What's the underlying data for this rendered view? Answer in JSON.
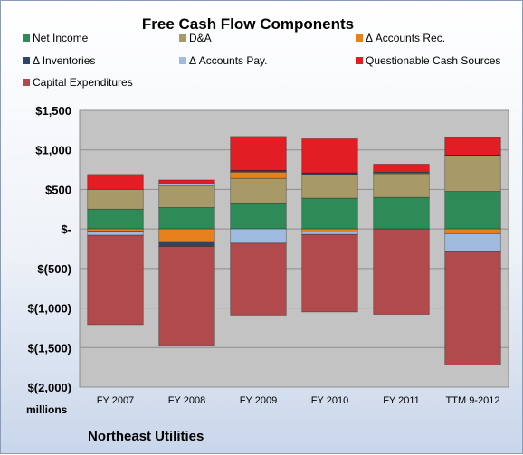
{
  "chart_data": {
    "type": "bar",
    "stacked": true,
    "title": "Free Cash Flow Components",
    "ylabel": "millions",
    "footer": "Northeast Utilities",
    "categories": [
      "FY 2007",
      "FY 2008",
      "FY 2009",
      "FY 2010",
      "FY 2011",
      "TTM 9-2012"
    ],
    "ylim": [
      -2000,
      1500
    ],
    "yticks": [
      -2000,
      -1500,
      -1000,
      -500,
      0,
      500,
      1000,
      1500
    ],
    "ytick_labels": [
      "$(2,000)",
      "$(1,500)",
      "$(1,000)",
      "$(500)",
      "$-",
      "$500",
      "$1,000",
      "$1,500"
    ],
    "grid": true,
    "legend_position": "top",
    "series": [
      {
        "name": "Net Income",
        "color": "#2e8b57",
        "values": [
          250,
          270,
          330,
          390,
          400,
          475
        ]
      },
      {
        "name": "D&A",
        "color": "#a89a68",
        "values": [
          250,
          280,
          310,
          300,
          300,
          450
        ]
      },
      {
        "name": "Δ Accounts Rec.",
        "color": "#e8801c",
        "values": [
          -30,
          -160,
          80,
          -40,
          10,
          -60
        ]
      },
      {
        "name": "Δ Inventories",
        "color": "#2b4668",
        "values": [
          -10,
          -60,
          20,
          20,
          10,
          10
        ]
      },
      {
        "name": "Δ Accounts Pay.",
        "color": "#9fbbdf",
        "values": [
          -40,
          30,
          -180,
          -30,
          10,
          -230
        ]
      },
      {
        "name": "Questionable Cash Sources",
        "color": "#e21d24",
        "values": [
          190,
          40,
          430,
          430,
          90,
          220
        ]
      },
      {
        "name": "Capital Expenditures",
        "color": "#b04a4c",
        "values": [
          -1130,
          -1250,
          -910,
          -980,
          -1080,
          -1430
        ]
      }
    ]
  }
}
